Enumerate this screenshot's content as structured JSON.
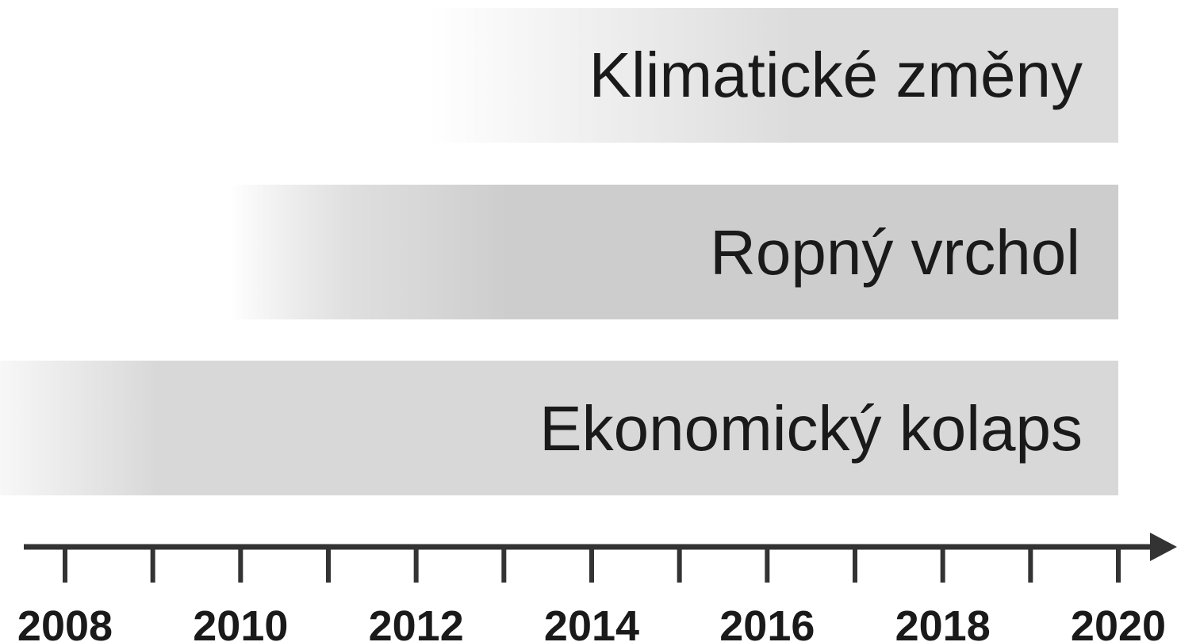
{
  "bars": [
    {
      "label": "Klimatické změny"
    },
    {
      "label": "Ropný vrchol"
    },
    {
      "label": "Ekonomický kolaps"
    }
  ],
  "axis": {
    "labels": [
      "2008",
      "2010",
      "2012",
      "2014",
      "2016",
      "2018",
      "2020"
    ]
  }
}
